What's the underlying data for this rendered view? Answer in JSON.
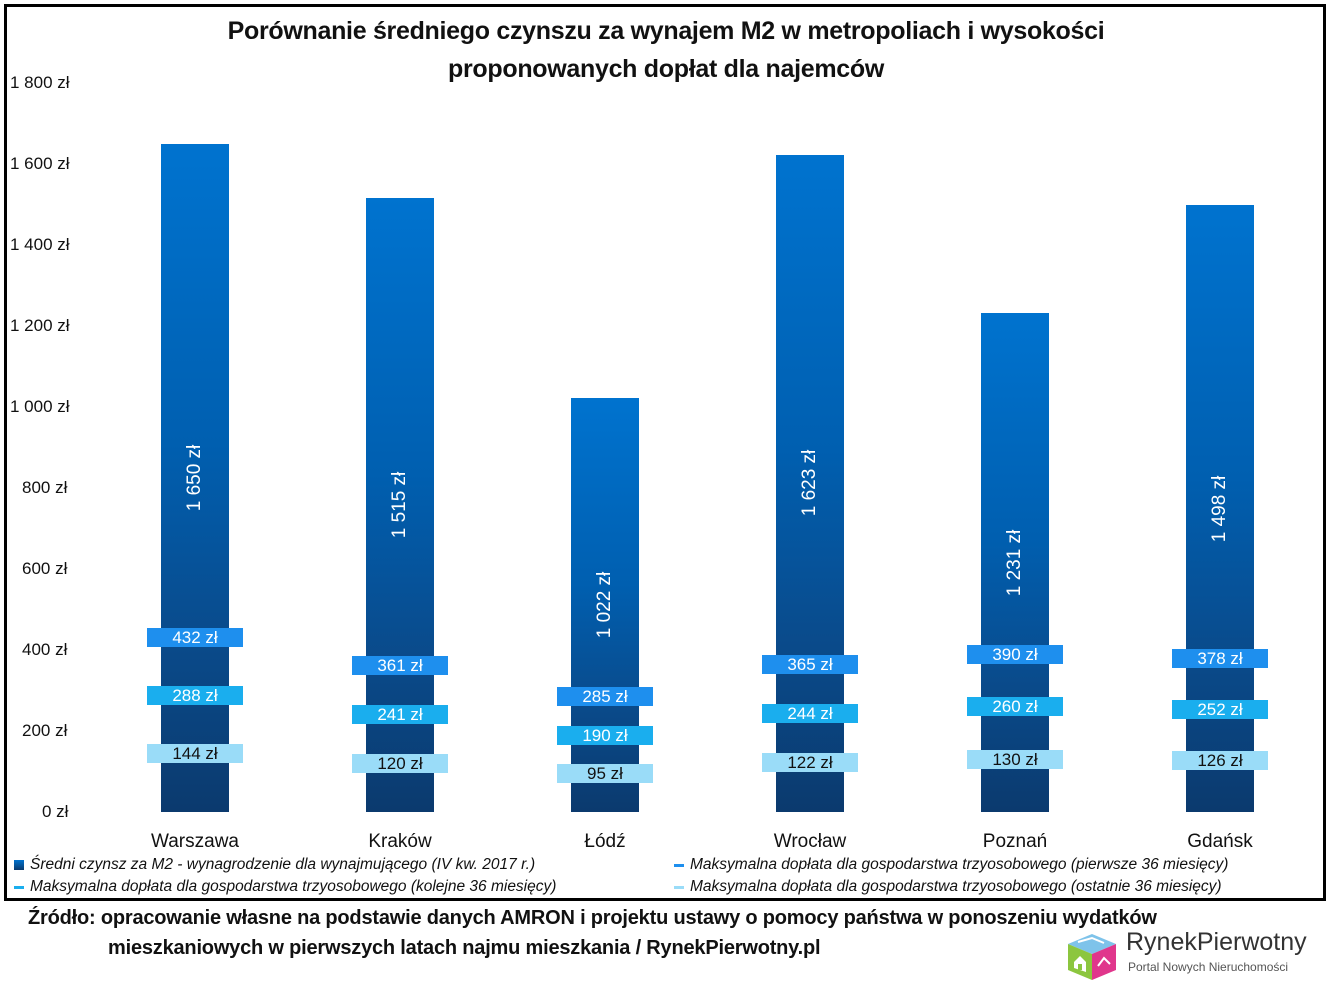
{
  "chart_data": {
    "type": "bar",
    "title": "Porównanie średniego czynszu za wynajem M2 w metropoliach i wysokości proponowanych dopłat dla najemców",
    "title_lines": [
      "Porównanie średniego czynszu za wynajem M2 w metropoliach i wysokości",
      "proponowanych dopłat dla najemców"
    ],
    "xlabel": "",
    "ylabel": "",
    "ylim": [
      0,
      1800
    ],
    "yticks": [
      "0 zł",
      "200 zł",
      "400 zł",
      "600 zł",
      "800 zł",
      "1 000 zł",
      "1 200 zł",
      "1 400 zł",
      "1 600 zł",
      "1 800 zł"
    ],
    "grid": false,
    "legend_position": "bottom",
    "categories": [
      "Warszawa",
      "Kraków",
      "Łódź",
      "Wrocław",
      "Poznań",
      "Gdańsk"
    ],
    "series": [
      {
        "name": "Średni czynsz za M2 - wynagrodzenie dla wynajmującego (IV kw. 2017 r.)",
        "kind": "bar",
        "color": "#0066c0",
        "values": [
          1650,
          1515,
          1022,
          1623,
          1231,
          1498
        ],
        "labels": [
          "1 650 zł",
          "1 515 zł",
          "1 022 zł",
          "1 623 zł",
          "1 231 zł",
          "1 498 zł"
        ]
      },
      {
        "name": "Maksymalna dopłata dla gospodarstwa trzyosobowego (pierwsze 36 miesięcy)",
        "kind": "marker",
        "color": "#1e8fee",
        "values": [
          432,
          361,
          285,
          365,
          390,
          378
        ],
        "labels": [
          "432 zł",
          "361 zł",
          "285 zł",
          "365 zł",
          "390 zł",
          "378 zł"
        ]
      },
      {
        "name": "Maksymalna dopłata dla gospodarstwa trzyosobowego (kolejne 36 miesięcy)",
        "kind": "marker",
        "color": "#1aaeee",
        "values": [
          288,
          241,
          190,
          244,
          260,
          252
        ],
        "labels": [
          "288 zł",
          "241 zł",
          "190 zł",
          "244 zł",
          "260 zł",
          "252 zł"
        ]
      },
      {
        "name": "Maksymalna dopłata dla gospodarstwa trzyosobowego (ostatnie 36 miesięcy)",
        "kind": "marker",
        "color": "#9adcf8",
        "values": [
          144,
          120,
          95,
          122,
          130,
          126
        ],
        "labels": [
          "144 zł",
          "120 zł",
          "95 zł",
          "122 zł",
          "130 zł",
          "126 zł"
        ]
      }
    ]
  },
  "legend": {
    "items": [
      {
        "label": "Średni czynsz za M2 - wynagrodzenie dla wynajmującego (IV kw. 2017 r.)",
        "swatch": "square",
        "color": "#0066c0"
      },
      {
        "label": "Maksymalna dopłata dla gospodarstwa trzyosobowego (pierwsze 36 miesięcy)",
        "swatch": "dash",
        "color": "#1e8fee"
      },
      {
        "label": "Maksymalna dopłata dla gospodarstwa trzyosobowego (kolejne 36 miesięcy)",
        "swatch": "dash",
        "color": "#1aaeee"
      },
      {
        "label": "Maksymalna dopłata dla gospodarstwa trzyosobowego (ostatnie 36 miesięcy)",
        "swatch": "dash",
        "color": "#9adcf8"
      }
    ]
  },
  "source": {
    "line1": "Źródło: opracowanie własne na podstawie danych AMRON i projektu ustawy o pomocy państwa w ponoszeniu wydatków",
    "line2": "mieszkaniowych w pierwszych latach najmu mieszkania / RynekPierwotny.pl"
  },
  "logo": {
    "name": "RynekPierwotny",
    "tagline": "Portal Nowych Nieruchomości"
  }
}
